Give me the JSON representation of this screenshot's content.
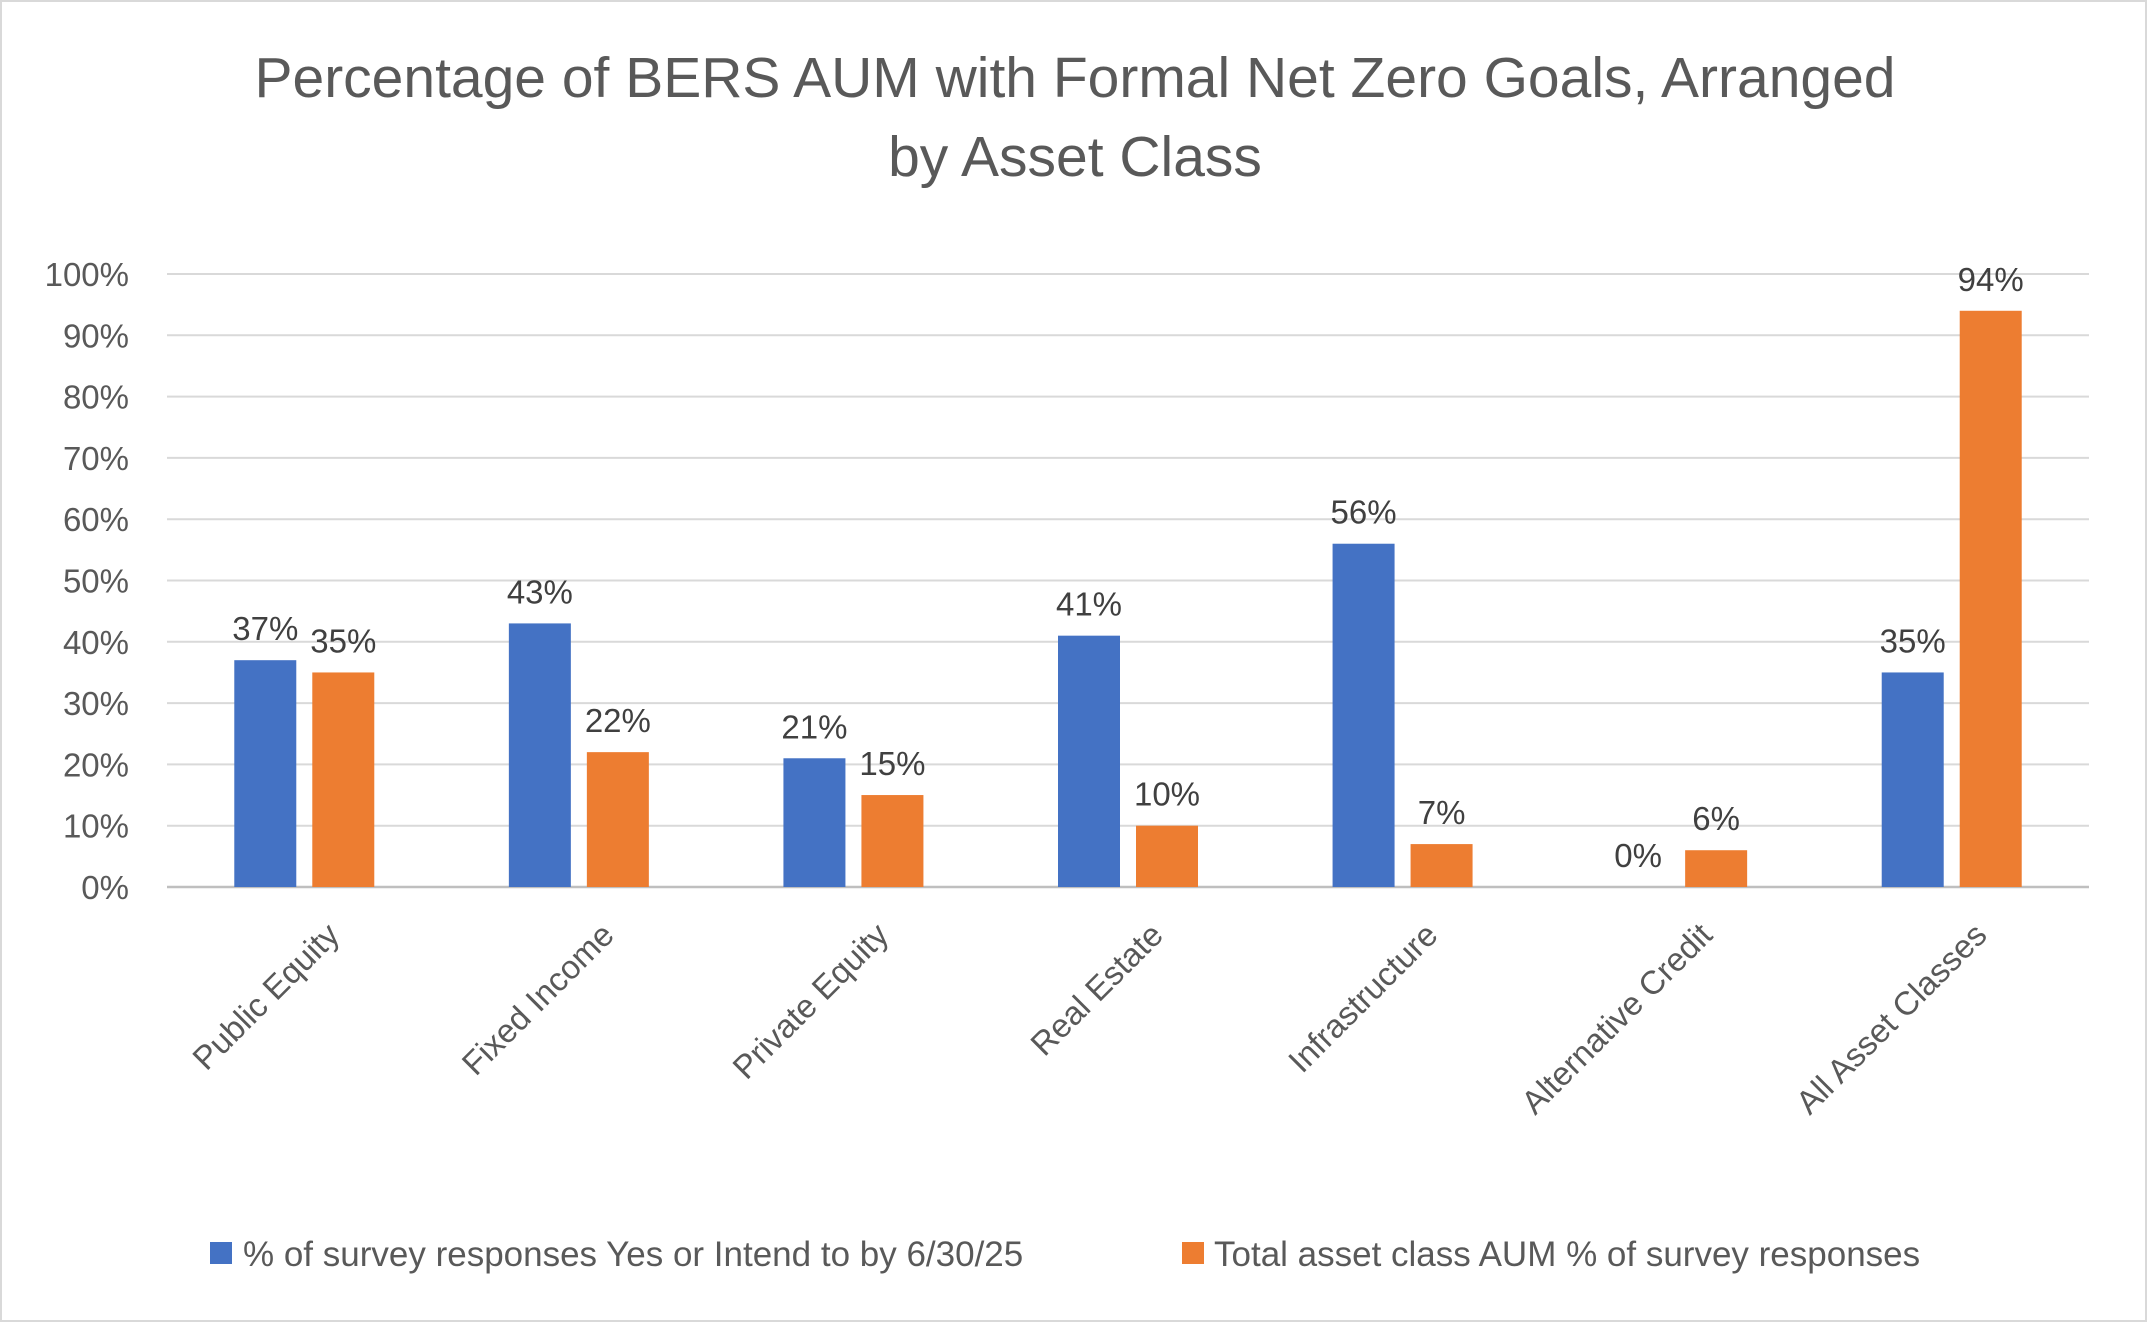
{
  "chart_data": {
    "type": "bar",
    "title_lines": [
      "Percentage of BERS AUM with Formal Net Zero Goals, Arranged",
      "by Asset Class"
    ],
    "categories": [
      "Public Equity",
      "Fixed Income",
      "Private Equity",
      "Real Estate",
      "Infrastructure",
      "Alternative Credit",
      "All Asset Classes"
    ],
    "series": [
      {
        "name": "% of survey responses Yes or Intend to by 6/30/25",
        "color": "#4472c4",
        "values": [
          37,
          43,
          21,
          41,
          56,
          0,
          35
        ],
        "labels": [
          "37%",
          "43%",
          "21%",
          "41%",
          "56%",
          "0%",
          "35%"
        ]
      },
      {
        "name": "Total asset class AUM % of survey responses",
        "color": "#ed7d31",
        "values": [
          35,
          22,
          15,
          10,
          7,
          6,
          94
        ],
        "labels": [
          "35%",
          "22%",
          "15%",
          "10%",
          "7%",
          "6%",
          "94%"
        ]
      }
    ],
    "y_ticks": [
      "0%",
      "10%",
      "20%",
      "30%",
      "40%",
      "50%",
      "60%",
      "70%",
      "80%",
      "90%",
      "100%"
    ],
    "ylim": [
      0,
      100
    ],
    "grid": true,
    "legend_position": "bottom"
  }
}
